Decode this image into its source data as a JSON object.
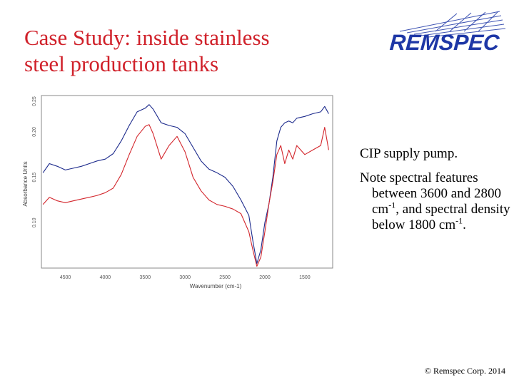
{
  "slide": {
    "title_line1": "Case Study: inside stainless",
    "title_line2": "steel production tanks",
    "logo_text": "REMSPEC",
    "note1": "CIP supply pump.",
    "note2_pre": "Note spectral features between 3600 and 2800 cm",
    "note2_sup1": "-1",
    "note2_mid": ", and spectral density below 1800 cm",
    "note2_sup2": "-1",
    "note2_post": ".",
    "footer": "© Remspec Corp. 2014"
  },
  "colors": {
    "title": "#d0212a",
    "logo": "#1e37a6",
    "series_blue": "#1c2a8c",
    "series_red": "#d3262c"
  },
  "chart_data": {
    "type": "line",
    "xlabel": "Wavenumber (cm-1)",
    "ylabel": "Absorbance Units",
    "x_reversed": true,
    "xlim": [
      4800,
      1150
    ],
    "ylim": [
      0.05,
      0.24
    ],
    "x_ticks": [
      "4500",
      "4000",
      "3500",
      "3000",
      "2500",
      "2000",
      "1500"
    ],
    "x_tick_values": [
      4500,
      4000,
      3500,
      3000,
      2500,
      2000,
      1500
    ],
    "y_ticks": [
      "0.10",
      "0.15",
      "0.20",
      "0.25"
    ],
    "y_tick_values": [
      0.1,
      0.15,
      0.2,
      0.25
    ],
    "series": [
      {
        "color_key": "series_blue",
        "x": [
          4780,
          4700,
          4600,
          4500,
          4400,
          4300,
          4200,
          4100,
          4000,
          3900,
          3800,
          3700,
          3600,
          3500,
          3450,
          3400,
          3300,
          3200,
          3100,
          3000,
          2900,
          2800,
          2700,
          2600,
          2500,
          2400,
          2300,
          2200,
          2150,
          2100,
          2050,
          2000,
          1950,
          1900,
          1850,
          1800,
          1750,
          1700,
          1650,
          1600,
          1500,
          1400,
          1300,
          1250,
          1200
        ],
        "y": [
          0.155,
          0.165,
          0.162,
          0.158,
          0.16,
          0.162,
          0.165,
          0.168,
          0.17,
          0.176,
          0.19,
          0.207,
          0.222,
          0.226,
          0.23,
          0.225,
          0.21,
          0.207,
          0.205,
          0.198,
          0.183,
          0.168,
          0.159,
          0.155,
          0.15,
          0.14,
          0.125,
          0.108,
          0.08,
          0.055,
          0.07,
          0.1,
          0.12,
          0.15,
          0.19,
          0.205,
          0.21,
          0.212,
          0.21,
          0.215,
          0.217,
          0.22,
          0.222,
          0.228,
          0.22
        ]
      },
      {
        "color_key": "series_red",
        "x": [
          4780,
          4700,
          4600,
          4500,
          4400,
          4300,
          4200,
          4100,
          4000,
          3900,
          3800,
          3700,
          3600,
          3500,
          3450,
          3400,
          3300,
          3200,
          3100,
          3000,
          2900,
          2800,
          2700,
          2600,
          2500,
          2400,
          2300,
          2200,
          2150,
          2100,
          2050,
          2000,
          1950,
          1900,
          1850,
          1800,
          1750,
          1700,
          1650,
          1600,
          1500,
          1400,
          1300,
          1250,
          1200
        ],
        "y": [
          0.12,
          0.128,
          0.124,
          0.122,
          0.124,
          0.126,
          0.128,
          0.13,
          0.133,
          0.138,
          0.153,
          0.175,
          0.195,
          0.206,
          0.208,
          0.198,
          0.17,
          0.185,
          0.195,
          0.178,
          0.15,
          0.135,
          0.125,
          0.12,
          0.118,
          0.115,
          0.11,
          0.09,
          0.07,
          0.052,
          0.062,
          0.09,
          0.12,
          0.145,
          0.175,
          0.185,
          0.165,
          0.18,
          0.17,
          0.185,
          0.175,
          0.18,
          0.185,
          0.205,
          0.18
        ]
      }
    ]
  }
}
